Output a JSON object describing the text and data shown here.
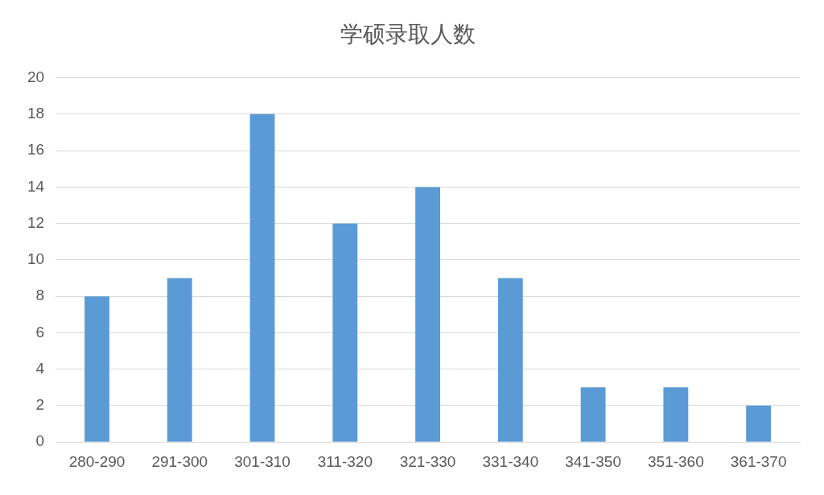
{
  "chart_data": {
    "type": "bar",
    "title": "学硕录取人数",
    "categories": [
      "280-290",
      "291-300",
      "301-310",
      "311-320",
      "321-330",
      "331-340",
      "341-350",
      "351-360",
      "361-370"
    ],
    "values": [
      8,
      9,
      18,
      12,
      14,
      9,
      3,
      3,
      2
    ],
    "color": "#5b9bd5",
    "ylim": [
      0,
      20
    ],
    "yticks": [
      0,
      2,
      4,
      6,
      8,
      10,
      12,
      14,
      16,
      18,
      20
    ],
    "grid": "y"
  }
}
